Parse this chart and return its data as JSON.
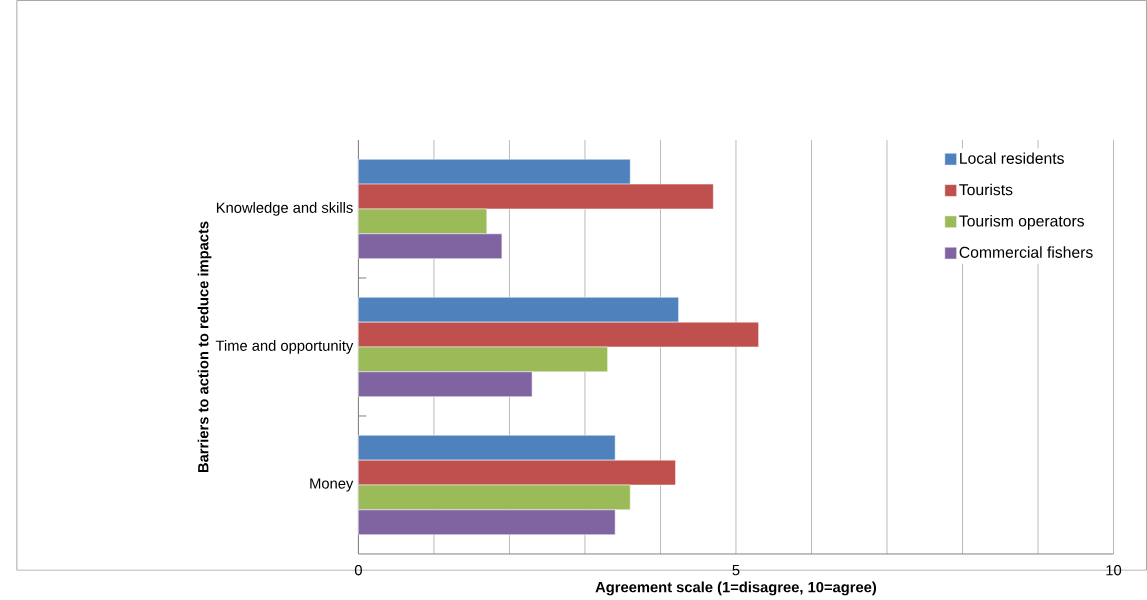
{
  "chart_data": {
    "type": "bar",
    "orientation": "horizontal",
    "xlabel": "Agreement scale (1=disagree, 10=agree)",
    "ylabel": "Barriers to action to reduce impacts",
    "categories": [
      "Knowledge and skills",
      "Time and opportunity",
      "Money"
    ],
    "series": [
      {
        "name": "Local residents",
        "color": "#4f81bd",
        "values": [
          3.6,
          4.24,
          3.4
        ]
      },
      {
        "name": "Tourists",
        "color": "#c0504d",
        "values": [
          4.7,
          5.3,
          4.2
        ]
      },
      {
        "name": "Tourism operators",
        "color": "#9bbb59",
        "values": [
          1.7,
          3.3,
          3.6
        ]
      },
      {
        "name": "Commercial fishers",
        "color": "#8064a2",
        "values": [
          1.9,
          2.3,
          3.4
        ]
      }
    ],
    "xlim": [
      0,
      10
    ],
    "xticks": [
      0,
      {
        "value": 1,
        "label": null
      },
      {
        "value": 2,
        "label": null
      },
      {
        "value": 3,
        "label": null
      },
      {
        "value": 4,
        "label": null
      },
      5,
      {
        "value": 6,
        "label": null
      },
      {
        "value": 7,
        "label": null
      },
      {
        "value": 8,
        "label": null
      },
      {
        "value": 9,
        "label": null
      },
      10
    ],
    "grid": "x",
    "legend": "top right"
  }
}
